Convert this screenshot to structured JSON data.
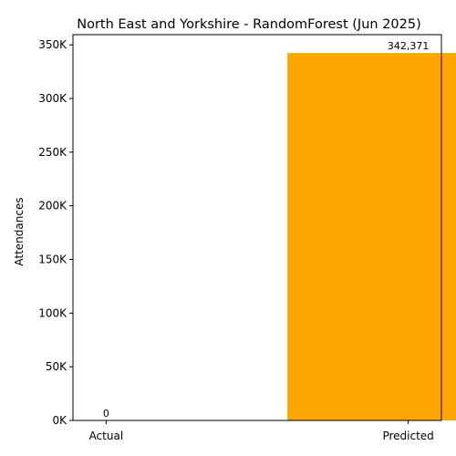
{
  "chart_data": {
    "type": "bar",
    "title": "North East and Yorkshire - RandomForest (Jun 2025)",
    "xlabel": "",
    "ylabel": "Attendances",
    "categories": [
      "Actual",
      "Predicted"
    ],
    "values": [
      0,
      342371
    ],
    "data_labels": [
      "0",
      "342,371"
    ],
    "bar_colors": [
      "#1f77b4",
      "#ffa500"
    ],
    "ylim": [
      0,
      359490
    ],
    "yticks": [
      0,
      50000,
      100000,
      150000,
      200000,
      250000,
      300000,
      350000
    ],
    "ytick_labels": [
      "0K",
      "50K",
      "100K",
      "150K",
      "200K",
      "250K",
      "300K",
      "350K"
    ],
    "grid": false,
    "legend": false
  }
}
